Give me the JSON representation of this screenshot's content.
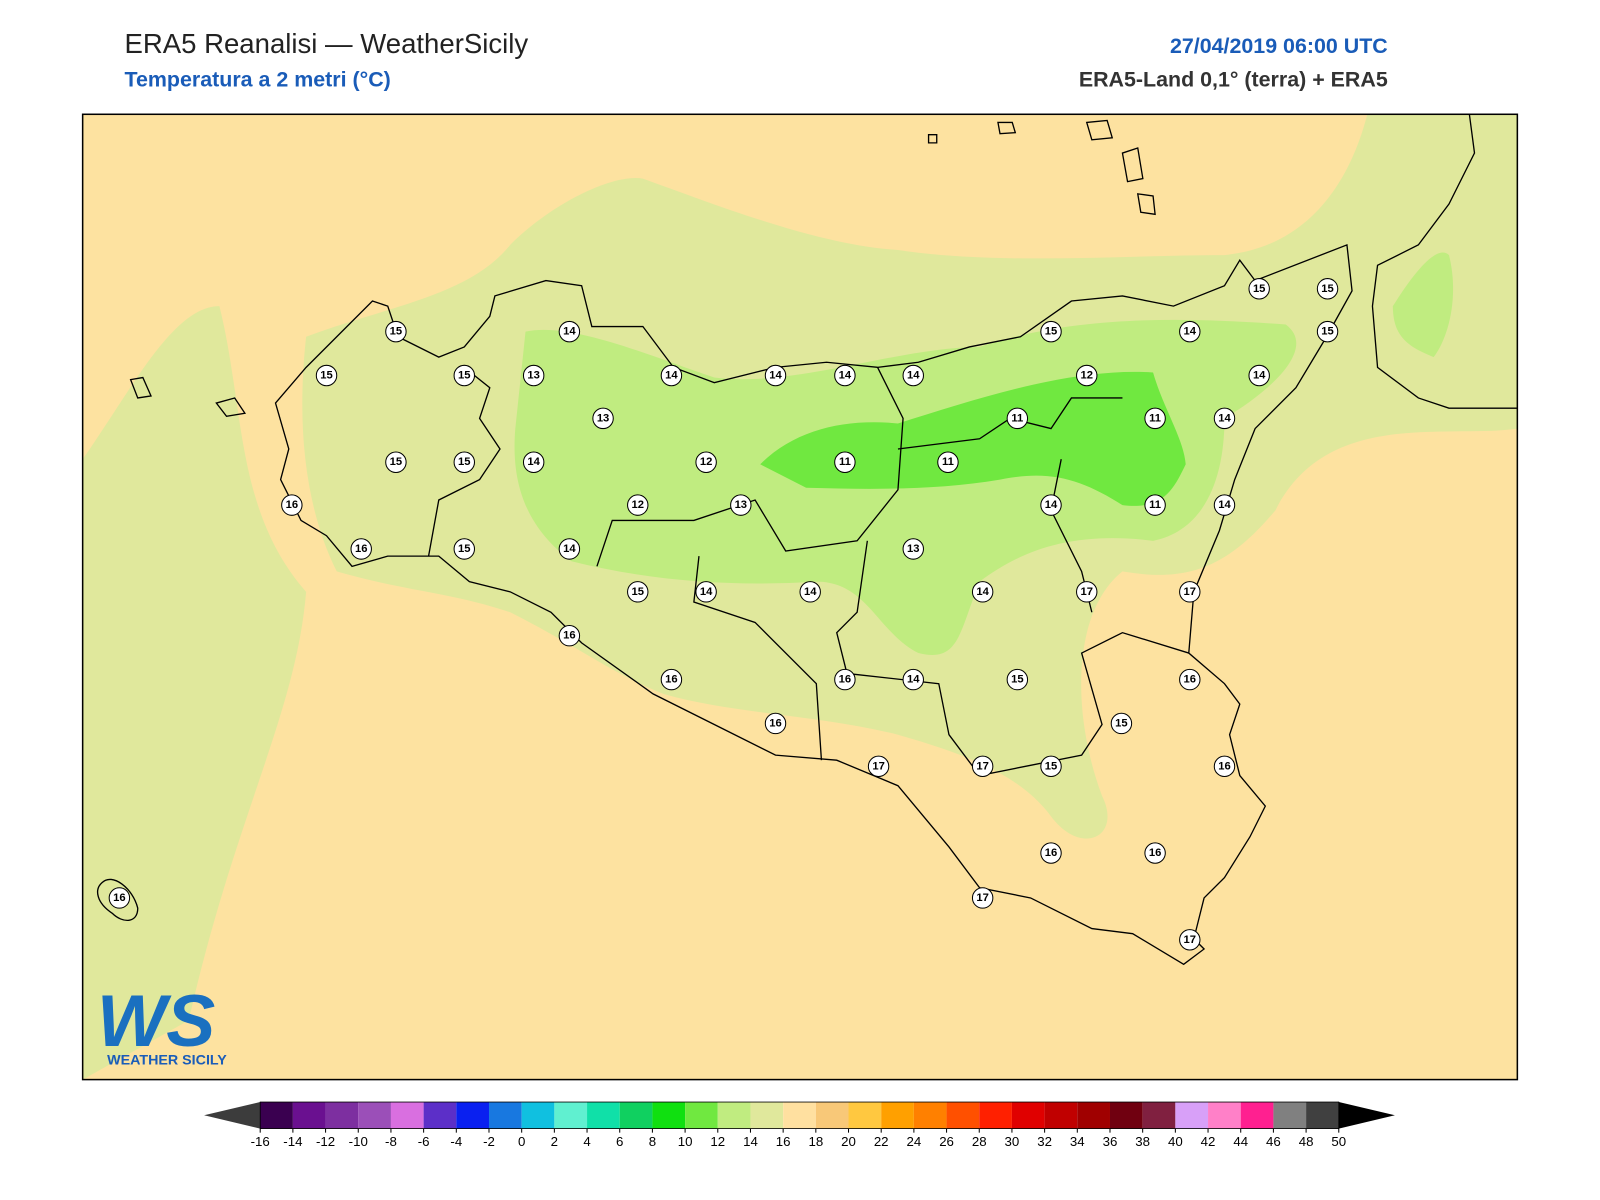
{
  "header": {
    "title": "ERA5 Reanalisi — WeatherSicily",
    "subtitle": "Temperatura a 2 metri (°C)",
    "datetime": "27/04/2019 06:00 UTC",
    "source": "ERA5-Land 0,1° (terra) + ERA5"
  },
  "stations": [
    15,
    14,
    15,
    14,
    15,
    15,
    15,
    15,
    15,
    13,
    14,
    14,
    14,
    14,
    12,
    14,
    13,
    11,
    11,
    14,
    15,
    15,
    14,
    12,
    11,
    11,
    16,
    12,
    13,
    14,
    11,
    14,
    16,
    15,
    14,
    13,
    15,
    14,
    14,
    14,
    17,
    17,
    16,
    16,
    16,
    14,
    15,
    16,
    15,
    16,
    17,
    17,
    15,
    16,
    16,
    16,
    16,
    17,
    17
  ],
  "logo": {
    "mark": "WS",
    "text": "WEATHER SICILY"
  },
  "colorbar": {
    "ticks": [
      -16,
      -14,
      -12,
      -10,
      -8,
      -6,
      -4,
      -2,
      0,
      2,
      4,
      6,
      8,
      10,
      12,
      14,
      16,
      18,
      20,
      22,
      24,
      26,
      28,
      30,
      32,
      34,
      36,
      38,
      40,
      42,
      44,
      46,
      48,
      50
    ],
    "colors": [
      "#3a0050",
      "#6a1090",
      "#7d2fa0",
      "#9b4fb8",
      "#d96fe0",
      "#5c2fc8",
      "#0a20f0",
      "#1878e0",
      "#10c0e0",
      "#60f0d0",
      "#10e0a8",
      "#10d060",
      "#10e010",
      "#70e840",
      "#c0ec80",
      "#e0e89c",
      "#ffe0a0",
      "#f8c878",
      "#ffc840",
      "#ffa000",
      "#ff8000",
      "#ff5000",
      "#ff2000",
      "#e00000",
      "#c00000",
      "#a00000",
      "#700010",
      "#802040",
      "#d8a0f8",
      "#ff80c8",
      "#ff2090",
      "#808080",
      "#404040"
    ],
    "extend_colors": [
      "#3c3c3c",
      "#000000"
    ]
  }
}
